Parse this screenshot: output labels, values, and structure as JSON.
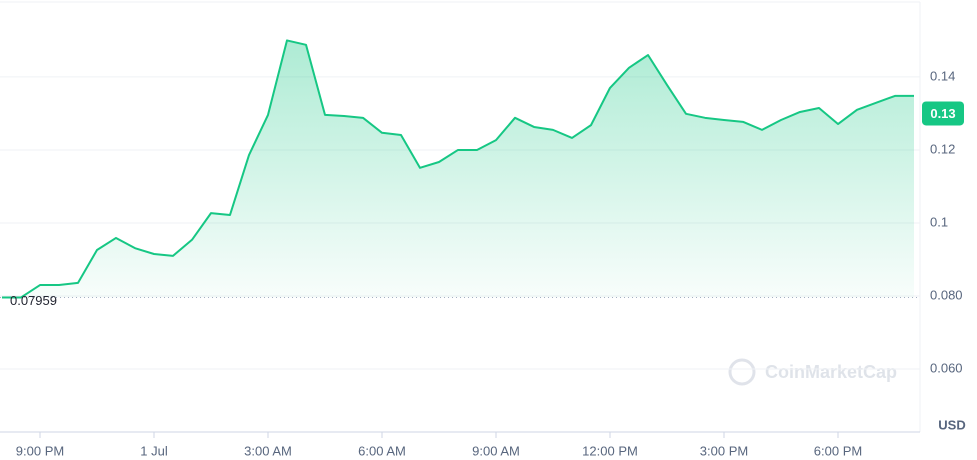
{
  "chart_data": {
    "type": "line",
    "categories": [
      null,
      null,
      "9:00 PM",
      null,
      null,
      null,
      null,
      null,
      "1 Jul",
      null,
      null,
      null,
      null,
      null,
      "3:00 AM",
      null,
      null,
      null,
      null,
      null,
      "6:00 AM",
      null,
      null,
      null,
      null,
      null,
      "9:00 AM",
      null,
      null,
      null,
      null,
      null,
      "12:00 PM",
      null,
      null,
      null,
      null,
      null,
      "3:00 PM",
      null,
      null,
      null,
      null,
      null,
      "6:00 PM",
      null,
      null,
      null,
      null
    ],
    "values": [
      0.0796,
      0.0796,
      0.083,
      0.083,
      0.0836,
      0.0926,
      0.0959,
      0.0931,
      0.0915,
      0.091,
      0.0954,
      0.1027,
      0.1022,
      0.1186,
      0.1296,
      0.15,
      0.1488,
      0.1296,
      0.1293,
      0.1288,
      0.1247,
      0.1241,
      0.1151,
      0.1167,
      0.12,
      0.12,
      0.1227,
      0.1288,
      0.1263,
      0.1255,
      0.1233,
      0.1268,
      0.137,
      0.1425,
      0.146,
      0.1378,
      0.1299,
      0.1288,
      0.1282,
      0.1277,
      0.1255,
      0.1282,
      0.1304,
      0.1315,
      0.1271,
      0.131,
      0.1329,
      0.1348,
      0.1348
    ],
    "color": "#16c784",
    "ylim": [
      0.0433,
      0.1597
    ],
    "yticks": [
      0.14,
      0.12,
      0.1,
      {
        "value": 0.08,
        "label": "0.080"
      },
      {
        "value": 0.06,
        "label": "0.060"
      }
    ],
    "grid": true,
    "start_price": 0.07959,
    "current_price": 0.13,
    "unit": "USD",
    "watermark": "CoinMarketCap"
  }
}
